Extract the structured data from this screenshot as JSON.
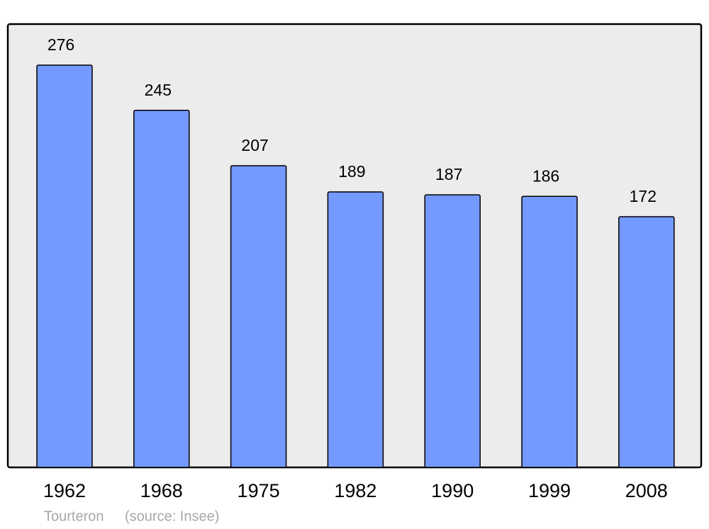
{
  "chart_data": {
    "type": "bar",
    "categories": [
      "1962",
      "1968",
      "1975",
      "1982",
      "1990",
      "1999",
      "2008"
    ],
    "values": [
      276,
      245,
      207,
      189,
      187,
      186,
      172
    ],
    "color": "#7499ff",
    "place": "Tourteron",
    "source": "(source: Insee)"
  }
}
